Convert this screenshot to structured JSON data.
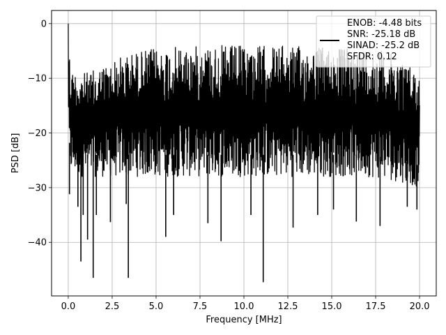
{
  "chart_data": {
    "type": "line",
    "title": "",
    "xlabel": "Frequency [MHz]",
    "ylabel": "PSD [dB]",
    "xlim": [
      -0.95,
      20.95
    ],
    "ylim": [
      -49.8,
      2.4
    ],
    "xticks": [
      0.0,
      2.5,
      5.0,
      7.5,
      10.0,
      12.5,
      15.0,
      17.5,
      20.0
    ],
    "xtick_labels": [
      "0.0",
      "2.5",
      "5.0",
      "7.5",
      "10.0",
      "12.5",
      "15.0",
      "17.5",
      "20.0"
    ],
    "yticks": [
      0,
      -10,
      -20,
      -30,
      -40
    ],
    "ytick_labels": [
      "0",
      "−10",
      "−20",
      "−30",
      "−40"
    ],
    "grid": true,
    "legend_position": "top-right",
    "legend_entries": [
      "ENOB: -4.48 bits",
      "SNR: -25.18 dB",
      "SINAD: -25.2 dB",
      "SFDR: 0.12"
    ],
    "series": [
      {
        "color": "#000000",
        "style": "noise-envelope",
        "x": [
          0.0,
          0.05,
          0.1,
          0.2,
          0.4,
          0.7,
          1.0,
          1.5,
          2.0,
          2.5,
          3.0,
          3.5,
          4.0,
          5.0,
          6.0,
          7.0,
          8.0,
          9.0,
          10.0,
          11.0,
          12.0,
          13.0,
          14.0,
          15.0,
          16.0,
          17.0,
          18.0,
          19.0,
          20.0
        ],
        "upper": [
          0.0,
          -3.5,
          -6.5,
          -8.5,
          -8.5,
          -8.8,
          -9.0,
          -8.5,
          -7.5,
          -7.0,
          -6.0,
          -5.5,
          -5.0,
          -4.5,
          -4.3,
          -4.2,
          -4.0,
          -4.0,
          -4.0,
          -4.0,
          -4.0,
          -4.2,
          -4.2,
          -4.3,
          -4.5,
          -4.5,
          -5.0,
          -6.5,
          -9.0
        ],
        "lower": [
          -15.0,
          -25.0,
          -27.0,
          -27.5,
          -27.5,
          -28.0,
          -28.0,
          -28.0,
          -28.0,
          -28.0,
          -28.0,
          -28.0,
          -28.0,
          -28.0,
          -28.0,
          -28.0,
          -28.0,
          -28.0,
          -28.0,
          -28.0,
          -28.0,
          -28.0,
          -28.0,
          -28.0,
          -28.0,
          -28.0,
          -28.5,
          -29.0,
          -30.0
        ]
      }
    ],
    "annotations": [
      {
        "type": "spike",
        "x": 0.07,
        "y": -31.2
      },
      {
        "type": "spike",
        "x": 0.55,
        "y": -33.5
      },
      {
        "type": "spike",
        "x": 0.72,
        "y": -43.5
      },
      {
        "type": "spike",
        "x": 0.85,
        "y": -35.0
      },
      {
        "type": "spike",
        "x": 1.1,
        "y": -39.5
      },
      {
        "type": "spike",
        "x": 1.42,
        "y": -46.5
      },
      {
        "type": "spike",
        "x": 1.6,
        "y": -35.0
      },
      {
        "type": "spike",
        "x": 2.4,
        "y": -36.3
      },
      {
        "type": "spike",
        "x": 3.42,
        "y": -46.5
      },
      {
        "type": "spike",
        "x": 3.3,
        "y": -33.0
      },
      {
        "type": "spike",
        "x": 5.55,
        "y": -39.0
      },
      {
        "type": "spike",
        "x": 6.0,
        "y": -35.0
      },
      {
        "type": "spike",
        "x": 7.95,
        "y": -36.5
      },
      {
        "type": "spike",
        "x": 8.7,
        "y": -39.8
      },
      {
        "type": "spike",
        "x": 10.4,
        "y": -35.0
      },
      {
        "type": "spike",
        "x": 11.1,
        "y": -47.3
      },
      {
        "type": "spike",
        "x": 12.8,
        "y": -37.3
      },
      {
        "type": "spike",
        "x": 14.2,
        "y": -35.0
      },
      {
        "type": "spike",
        "x": 15.1,
        "y": -34.0
      },
      {
        "type": "spike",
        "x": 16.4,
        "y": -36.2
      },
      {
        "type": "spike",
        "x": 17.75,
        "y": -37.0
      },
      {
        "type": "spike",
        "x": 19.3,
        "y": -33.5
      },
      {
        "type": "spike",
        "x": 19.85,
        "y": -34.0
      }
    ]
  }
}
